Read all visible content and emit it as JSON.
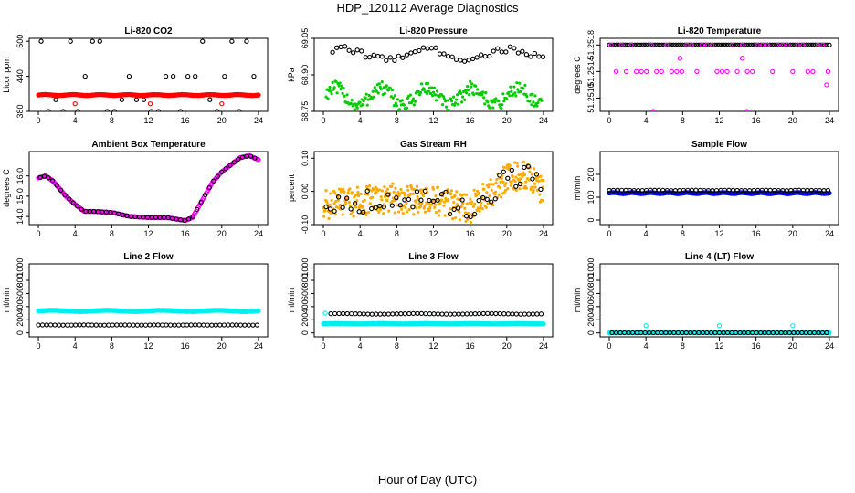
{
  "figure": {
    "title": "HDP_120112  Average Diagnostics",
    "xlabel": "Hour of Day (UTC)"
  },
  "chart_data": [
    {
      "type": "scatter",
      "title": "Li-820 CO2",
      "ylabel": "Licor ppm",
      "xlim": [
        -1,
        25
      ],
      "ylim": [
        380,
        505
      ],
      "xticks": [
        0,
        4,
        8,
        12,
        16,
        20,
        24
      ],
      "yticks": [
        {
          "v": 380,
          "label": "380"
        },
        {
          "v": 440,
          "label": "440"
        },
        {
          "v": 500,
          "label": "500"
        }
      ],
      "series": [
        {
          "name": "black",
          "color": "#000000",
          "shape": "ring",
          "gen": {
            "mode": "levels",
            "levels": [
              500,
              440,
              400,
              380
            ],
            "start": 0,
            "end": 24,
            "step": 0.8,
            "offset": 0.3
          }
        },
        {
          "name": "red",
          "color": "#ff0000",
          "shape": "ring",
          "gen": {
            "mode": "band",
            "start": 0,
            "end": 24,
            "step": 0.1,
            "center": 408,
            "amp": 1,
            "period": 3
          }
        },
        {
          "name": "red-out",
          "color": "#ff0000",
          "shape": "ring",
          "points": [
            [
              4.0,
              393
            ],
            [
              12.2,
              393
            ],
            [
              20.0,
              393
            ]
          ]
        }
      ]
    },
    {
      "type": "scatter",
      "title": "Li-820 Pressure",
      "ylabel": "kPa",
      "xlim": [
        -1,
        25
      ],
      "ylim": [
        68.75,
        69.05
      ],
      "xticks": [
        0,
        4,
        8,
        12,
        16,
        20,
        24
      ],
      "yticks": [
        {
          "v": 68.75,
          "label": "68.75"
        },
        {
          "v": 68.9,
          "label": "68.90"
        },
        {
          "v": 69.05,
          "label": "69.05"
        }
      ],
      "series": [
        {
          "name": "green",
          "color": "#00cc00",
          "shape": "dot",
          "gen": {
            "mode": "cloud",
            "start": 0.3,
            "end": 23.8,
            "step": 0.1,
            "center": 68.81,
            "amp": 0.035,
            "period": 5,
            "scatter": 0.03
          }
        },
        {
          "name": "black",
          "color": "#000000",
          "shape": "ring",
          "gen": {
            "mode": "trend",
            "start": 1,
            "end": 24,
            "step": 0.45,
            "center": 68.985,
            "amp": 0.02,
            "period": 9,
            "scatter": 0.012
          }
        }
      ]
    },
    {
      "type": "scatter",
      "title": "Li-820 Temperature",
      "ylabel": "degrees C",
      "xlim": [
        -1,
        25
      ],
      "ylim": [
        51.2508,
        51.2519
      ],
      "xticks": [
        0,
        4,
        8,
        12,
        16,
        20,
        24
      ],
      "yticks": [
        {
          "v": 51.251,
          "label": "51.2510"
        },
        {
          "v": 51.2514,
          "label": "51.2514"
        },
        {
          "v": 51.2518,
          "label": "51.2518"
        }
      ],
      "series": [
        {
          "name": "black",
          "color": "#000000",
          "shape": "ring",
          "gen": {
            "mode": "levels",
            "levels": [
              51.2518
            ],
            "start": 0,
            "end": 24,
            "step": 0.25,
            "offset": 0
          }
        },
        {
          "name": "magenta",
          "color": "#ff00ff",
          "shape": "ring",
          "gen": {
            "mode": "levels",
            "levels": [
              51.2518,
              51.2514
            ],
            "start": 0,
            "end": 24,
            "step": 0.55,
            "offset": 0.2
          }
        },
        {
          "name": "magenta-out",
          "color": "#ff00ff",
          "shape": "ring",
          "points": [
            [
              4.8,
              51.2508
            ],
            [
              7.7,
              51.2516
            ],
            [
              14.5,
              51.2516
            ],
            [
              15.0,
              51.2508
            ],
            [
              23.7,
              51.2512
            ]
          ]
        }
      ]
    },
    {
      "type": "scatter",
      "title": "Ambient Box Temperature",
      "ylabel": "degrees C",
      "xlim": [
        -1,
        25
      ],
      "ylim": [
        13.6,
        17.2
      ],
      "xticks": [
        0,
        4,
        8,
        12,
        16,
        20,
        24
      ],
      "yticks": [
        {
          "v": 14.0,
          "label": "14.0"
        },
        {
          "v": 15.0,
          "label": "15.0"
        },
        {
          "v": 16.0,
          "label": "16.0"
        }
      ],
      "series": [
        {
          "name": "magenta",
          "color": "#ff00ff",
          "shape": "ring",
          "gen": {
            "mode": "curve",
            "start": 0,
            "end": 24,
            "step": 0.1,
            "knots": [
              [
                0,
                15.9
              ],
              [
                0.8,
                16.0
              ],
              [
                1.6,
                15.75
              ],
              [
                3,
                15.0
              ],
              [
                4,
                14.6
              ],
              [
                5,
                14.25
              ],
              [
                6,
                14.25
              ],
              [
                8,
                14.2
              ],
              [
                10,
                14.0
              ],
              [
                12,
                13.95
              ],
              [
                14,
                13.95
              ],
              [
                16,
                13.8
              ],
              [
                16.8,
                13.95
              ],
              [
                18,
                14.9
              ],
              [
                19,
                15.7
              ],
              [
                20,
                16.2
              ],
              [
                22,
                16.9
              ],
              [
                23,
                17.0
              ],
              [
                24,
                16.8
              ]
            ]
          }
        },
        {
          "name": "black",
          "color": "#000000",
          "shape": "ring",
          "gen": {
            "mode": "curve",
            "start": 0.2,
            "end": 24,
            "step": 0.45,
            "knots": [
              [
                0,
                15.9
              ],
              [
                0.8,
                16.0
              ],
              [
                1.6,
                15.75
              ],
              [
                3,
                15.0
              ],
              [
                4,
                14.6
              ],
              [
                5,
                14.25
              ],
              [
                6,
                14.25
              ],
              [
                8,
                14.2
              ],
              [
                10,
                14.0
              ],
              [
                12,
                13.95
              ],
              [
                14,
                13.95
              ],
              [
                16,
                13.8
              ],
              [
                16.8,
                13.95
              ],
              [
                18,
                14.9
              ],
              [
                19,
                15.7
              ],
              [
                20,
                16.2
              ],
              [
                22,
                16.9
              ],
              [
                23,
                17.0
              ],
              [
                24,
                16.8
              ]
            ]
          }
        }
      ]
    },
    {
      "type": "scatter",
      "title": "Gas Stream RH",
      "ylabel": "percent",
      "xlim": [
        -1,
        25
      ],
      "ylim": [
        -0.1,
        0.12
      ],
      "xticks": [
        0,
        4,
        8,
        12,
        16,
        20,
        24
      ],
      "yticks": [
        {
          "v": -0.1,
          "label": "-0.10"
        },
        {
          "v": 0.0,
          "label": "0.00"
        },
        {
          "v": 0.1,
          "label": "0.10"
        }
      ],
      "series": [
        {
          "name": "orange",
          "color": "#ffaa00",
          "shape": "dot",
          "gen": {
            "mode": "cloud2",
            "start": 0,
            "end": 24,
            "step": 0.06,
            "scatter": 0.045,
            "knots": [
              [
                0,
                -0.04
              ],
              [
                4,
                -0.03
              ],
              [
                8,
                -0.02
              ],
              [
                12,
                -0.03
              ],
              [
                16,
                -0.05
              ],
              [
                18,
                -0.01
              ],
              [
                20,
                0.04
              ],
              [
                22,
                0.05
              ],
              [
                24,
                0.0
              ]
            ]
          }
        },
        {
          "name": "black",
          "color": "#000000",
          "shape": "ring",
          "gen": {
            "mode": "cloud2",
            "start": 0.3,
            "end": 24,
            "step": 0.45,
            "scatter": 0.035,
            "knots": [
              [
                0,
                -0.04
              ],
              [
                4,
                -0.03
              ],
              [
                8,
                -0.02
              ],
              [
                12,
                -0.03
              ],
              [
                16,
                -0.05
              ],
              [
                18,
                -0.01
              ],
              [
                20,
                0.04
              ],
              [
                22,
                0.05
              ],
              [
                24,
                0.0
              ]
            ]
          }
        }
      ]
    },
    {
      "type": "scatter",
      "title": "Sample Flow",
      "ylabel": "ml/min",
      "xlim": [
        -1,
        25
      ],
      "ylim": [
        -20,
        300
      ],
      "xticks": [
        0,
        4,
        8,
        12,
        16,
        20,
        24
      ],
      "yticks": [
        {
          "v": 0,
          "label": "0"
        },
        {
          "v": 100,
          "label": "100"
        },
        {
          "v": 200,
          "label": "200"
        }
      ],
      "series": [
        {
          "name": "blue",
          "color": "#0000ee",
          "shape": "ring",
          "gen": {
            "mode": "band",
            "start": 0,
            "end": 24,
            "step": 0.1,
            "center": 118,
            "amp": 3,
            "period": 2
          }
        },
        {
          "name": "black",
          "color": "#000000",
          "shape": "ring",
          "gen": {
            "mode": "band",
            "start": 0,
            "end": 24,
            "step": 0.45,
            "center": 130,
            "amp": 1,
            "period": 4
          }
        }
      ]
    },
    {
      "type": "scatter",
      "title": "Line 2 Flow",
      "ylabel": "ml/min",
      "xlim": [
        -1,
        25
      ],
      "ylim": [
        -60,
        1050
      ],
      "xticks": [
        0,
        4,
        8,
        12,
        16,
        20,
        24
      ],
      "yticks": [
        {
          "v": 0,
          "label": "0"
        },
        {
          "v": 200,
          "label": "200"
        },
        {
          "v": 400,
          "label": "400"
        },
        {
          "v": 600,
          "label": "600"
        },
        {
          "v": 800,
          "label": "800"
        },
        {
          "v": 1000,
          "label": "1000"
        }
      ],
      "series": [
        {
          "name": "cyan",
          "color": "#00eeee",
          "shape": "ring",
          "gen": {
            "mode": "band",
            "start": 0,
            "end": 24,
            "step": 0.1,
            "center": 335,
            "amp": 12,
            "period": 6
          }
        },
        {
          "name": "black",
          "color": "#000000",
          "shape": "ring",
          "gen": {
            "mode": "band",
            "start": 0,
            "end": 24,
            "step": 0.45,
            "center": 120,
            "amp": 2,
            "period": 4
          }
        }
      ]
    },
    {
      "type": "scatter",
      "title": "Line 3 Flow",
      "ylabel": "ml/min",
      "xlim": [
        -1,
        25
      ],
      "ylim": [
        -60,
        1050
      ],
      "xticks": [
        0,
        4,
        8,
        12,
        16,
        20,
        24
      ],
      "yticks": [
        {
          "v": 0,
          "label": "0"
        },
        {
          "v": 200,
          "label": "200"
        },
        {
          "v": 400,
          "label": "400"
        },
        {
          "v": 600,
          "label": "600"
        },
        {
          "v": 800,
          "label": "800"
        },
        {
          "v": 1000,
          "label": "1000"
        }
      ],
      "series": [
        {
          "name": "cyan",
          "color": "#00eeee",
          "shape": "ring",
          "gen": {
            "mode": "band",
            "start": 0,
            "end": 24,
            "step": 0.1,
            "center": 140,
            "amp": 4,
            "period": 5
          }
        },
        {
          "name": "black",
          "color": "#000000",
          "shape": "ring",
          "gen": {
            "mode": "band",
            "start": 0.8,
            "end": 24,
            "step": 0.45,
            "center": 290,
            "amp": 6,
            "period": 8
          }
        },
        {
          "name": "cyan-start",
          "color": "#00eeee",
          "shape": "ring",
          "points": [
            [
              0.2,
              300
            ]
          ]
        }
      ]
    },
    {
      "type": "scatter",
      "title": "Line 4 (LT) Flow",
      "ylabel": "ml/min",
      "xlim": [
        -1,
        25
      ],
      "ylim": [
        -60,
        1050
      ],
      "xticks": [
        0,
        4,
        8,
        12,
        16,
        20,
        24
      ],
      "yticks": [
        {
          "v": 0,
          "label": "0"
        },
        {
          "v": 200,
          "label": "200"
        },
        {
          "v": 400,
          "label": "400"
        },
        {
          "v": 600,
          "label": "600"
        },
        {
          "v": 800,
          "label": "800"
        },
        {
          "v": 1000,
          "label": "1000"
        }
      ],
      "series": [
        {
          "name": "cyan",
          "color": "#00eeee",
          "shape": "ring",
          "gen": {
            "mode": "band",
            "start": 0,
            "end": 24,
            "step": 0.1,
            "center": 2,
            "amp": 0,
            "period": 5
          }
        },
        {
          "name": "black",
          "color": "#000000",
          "shape": "ring",
          "gen": {
            "mode": "band",
            "start": 0.3,
            "end": 24,
            "step": 0.45,
            "center": 2,
            "amp": 0,
            "period": 5
          }
        },
        {
          "name": "cyan-spikes",
          "color": "#00eeee",
          "shape": "ring",
          "points": [
            [
              4.0,
              110
            ],
            [
              12.0,
              110
            ],
            [
              20.0,
              110
            ]
          ]
        }
      ]
    }
  ]
}
